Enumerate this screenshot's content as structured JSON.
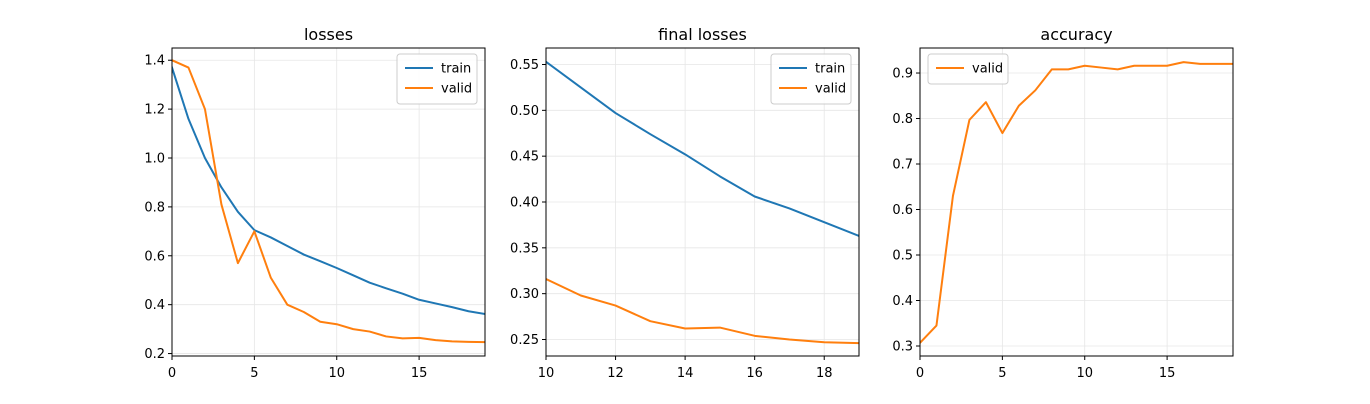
{
  "chart_data": [
    {
      "type": "line",
      "title": "losses",
      "xlabel": "",
      "ylabel": "",
      "xlim": [
        0,
        19
      ],
      "ylim": [
        0.19,
        1.45
      ],
      "xticks": [
        0,
        5,
        10,
        15
      ],
      "yticks": [
        0.2,
        0.4,
        0.6,
        0.8,
        1.0,
        1.2,
        1.4
      ],
      "xtick_labels": [
        "0",
        "5",
        "10",
        "15"
      ],
      "ytick_labels": [
        "0.2",
        "0.4",
        "0.6",
        "0.8",
        "1.0",
        "1.2",
        "1.4"
      ],
      "grid": true,
      "legend": "top-right",
      "series": [
        {
          "name": "train",
          "color": "#1f77b4",
          "x": [
            0,
            1,
            2,
            3,
            4,
            5,
            6,
            7,
            8,
            9,
            10,
            11,
            12,
            13,
            14,
            15,
            16,
            17,
            18,
            19
          ],
          "y": [
            1.37,
            1.16,
            1.0,
            0.88,
            0.78,
            0.705,
            0.675,
            0.64,
            0.605,
            0.578,
            0.55,
            0.52,
            0.49,
            0.467,
            0.445,
            0.42,
            0.405,
            0.39,
            0.373,
            0.362
          ]
        },
        {
          "name": "valid",
          "color": "#ff7f0e",
          "x": [
            0,
            1,
            2,
            3,
            4,
            5,
            6,
            7,
            8,
            9,
            10,
            11,
            12,
            13,
            14,
            15,
            16,
            17,
            18,
            19
          ],
          "y": [
            1.4,
            1.37,
            1.2,
            0.81,
            0.57,
            0.7,
            0.51,
            0.4,
            0.37,
            0.33,
            0.32,
            0.3,
            0.29,
            0.27,
            0.262,
            0.264,
            0.255,
            0.25,
            0.248,
            0.247
          ]
        }
      ]
    },
    {
      "type": "line",
      "title": "final losses",
      "xlabel": "",
      "ylabel": "",
      "xlim": [
        10,
        19
      ],
      "ylim": [
        0.232,
        0.568
      ],
      "xticks": [
        10,
        12,
        14,
        16,
        18
      ],
      "yticks": [
        0.25,
        0.3,
        0.35,
        0.4,
        0.45,
        0.5,
        0.55
      ],
      "xtick_labels": [
        "10",
        "12",
        "14",
        "16",
        "18"
      ],
      "ytick_labels": [
        "0.25",
        "0.30",
        "0.35",
        "0.40",
        "0.45",
        "0.50",
        "0.55"
      ],
      "grid": true,
      "legend": "top-right",
      "series": [
        {
          "name": "train",
          "color": "#1f77b4",
          "x": [
            10,
            11,
            12,
            13,
            14,
            15,
            16,
            17,
            18,
            19
          ],
          "y": [
            0.553,
            0.525,
            0.497,
            0.474,
            0.452,
            0.428,
            0.406,
            0.393,
            0.378,
            0.363
          ]
        },
        {
          "name": "valid",
          "color": "#ff7f0e",
          "x": [
            10,
            11,
            12,
            13,
            14,
            15,
            16,
            17,
            18,
            19
          ],
          "y": [
            0.316,
            0.298,
            0.287,
            0.27,
            0.262,
            0.263,
            0.254,
            0.25,
            0.247,
            0.246
          ]
        }
      ]
    },
    {
      "type": "line",
      "title": "accuracy",
      "xlabel": "",
      "ylabel": "",
      "xlim": [
        0,
        19
      ],
      "ylim": [
        0.278,
        0.955
      ],
      "xticks": [
        0,
        5,
        10,
        15
      ],
      "yticks": [
        0.3,
        0.4,
        0.5,
        0.6,
        0.7,
        0.8,
        0.9
      ],
      "xtick_labels": [
        "0",
        "5",
        "10",
        "15"
      ],
      "ytick_labels": [
        "0.3",
        "0.4",
        "0.5",
        "0.6",
        "0.7",
        "0.8",
        "0.9"
      ],
      "grid": true,
      "legend": "top-left",
      "series": [
        {
          "name": "valid",
          "color": "#ff7f0e",
          "x": [
            0,
            1,
            2,
            3,
            4,
            5,
            6,
            7,
            8,
            9,
            10,
            11,
            12,
            13,
            14,
            15,
            16,
            17,
            18,
            19
          ],
          "y": [
            0.307,
            0.345,
            0.63,
            0.797,
            0.836,
            0.768,
            0.828,
            0.862,
            0.908,
            0.908,
            0.916,
            0.912,
            0.908,
            0.916,
            0.916,
            0.916,
            0.924,
            0.92,
            0.92,
            0.92
          ]
        }
      ]
    }
  ]
}
